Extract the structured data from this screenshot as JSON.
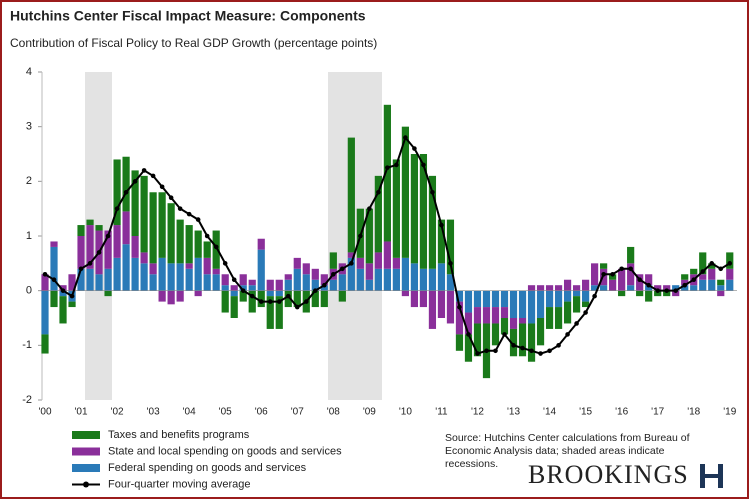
{
  "chart_data": {
    "type": "bar",
    "title": "Hutchins Center Fiscal Impact Measure: Components",
    "subtitle": "Contribution of Fiscal Policy to Real GDP Growth (percentage points)",
    "source": "Source: Hutchins Center calculations from Bureau of Economic Analysis data; shaded areas indicate recessions.",
    "brand": "BROOKINGS",
    "categories": [
      "'00",
      null,
      null,
      null,
      "'01",
      null,
      null,
      null,
      "'02",
      null,
      null,
      null,
      "'03",
      null,
      null,
      null,
      "'04",
      null,
      null,
      null,
      "'05",
      null,
      null,
      null,
      "'06",
      null,
      null,
      null,
      "'07",
      null,
      null,
      null,
      "'08",
      null,
      null,
      null,
      "'09",
      null,
      null,
      null,
      "'10",
      null,
      null,
      null,
      "'11",
      null,
      null,
      null,
      "'12",
      null,
      null,
      null,
      "'13",
      null,
      null,
      null,
      "'14",
      null,
      null,
      null,
      "'15",
      null,
      null,
      null,
      "'16",
      null,
      null,
      null,
      "'17",
      null,
      null,
      null,
      "'18",
      null,
      null,
      null,
      "'19"
    ],
    "ylim": [
      -2,
      4
    ],
    "yticks": [
      -2,
      -1,
      0,
      1,
      2,
      3,
      4
    ],
    "series": [
      {
        "name": "Taxes and benefits programs",
        "color": "#1a7a1a",
        "values": [
          -0.35,
          -0.3,
          -0.5,
          -0.1,
          0.2,
          0.1,
          0.1,
          -0.1,
          1.2,
          1.0,
          1.2,
          1.4,
          1.3,
          1.2,
          1.1,
          0.8,
          0.7,
          0.5,
          0.3,
          0.7,
          -0.4,
          -0.4,
          -0.2,
          -0.4,
          -0.3,
          -0.6,
          -0.6,
          -0.3,
          -0.3,
          -0.4,
          -0.3,
          -0.3,
          0.3,
          -0.2,
          2.1,
          0.9,
          1.0,
          1.4,
          2.5,
          1.8,
          2.4,
          2.0,
          2.1,
          1.7,
          0.8,
          1.0,
          -0.3,
          -0.5,
          -0.6,
          -1.0,
          -0.4,
          -0.3,
          -0.5,
          -0.6,
          -0.7,
          -0.5,
          -0.4,
          -0.4,
          -0.4,
          -0.3,
          -0.1,
          0.0,
          0.1,
          0.1,
          -0.1,
          0.3,
          -0.1,
          -0.2,
          -0.1,
          -0.1,
          0.0,
          0.1,
          0.1,
          0.4,
          0.1,
          0.1,
          0.3
        ]
      },
      {
        "name": "State and local spending on goods and services",
        "color": "#8a2f9a",
        "values": [
          0.3,
          0.1,
          0.1,
          0.3,
          0.6,
          0.8,
          0.8,
          0.7,
          0.6,
          0.6,
          0.4,
          0.2,
          0.2,
          -0.2,
          -0.25,
          -0.2,
          0.1,
          -0.1,
          0.3,
          0.1,
          0.2,
          0.1,
          0.2,
          0.1,
          0.2,
          0.2,
          0.2,
          0.1,
          0.2,
          0.2,
          0.2,
          0.2,
          0.2,
          0.2,
          0.1,
          0.2,
          0.3,
          0.3,
          0.5,
          0.2,
          -0.1,
          -0.3,
          -0.3,
          -0.7,
          -0.5,
          -0.6,
          -0.6,
          -0.4,
          -0.3,
          -0.3,
          -0.3,
          -0.2,
          -0.2,
          -0.1,
          0.1,
          0.1,
          0.1,
          0.1,
          0.2,
          0.1,
          0.2,
          0.4,
          0.3,
          0.2,
          0.4,
          0.4,
          0.3,
          0.2,
          0.1,
          0.1,
          -0.1,
          0.1,
          0.2,
          0.1,
          0.2,
          -0.1,
          0.2
        ]
      },
      {
        "name": "Federal spending on goods and services",
        "color": "#2a7ab8",
        "values": [
          -0.8,
          0.8,
          -0.1,
          -0.2,
          0.4,
          0.4,
          0.3,
          0.4,
          0.6,
          0.85,
          0.6,
          0.5,
          0.3,
          0.6,
          0.5,
          0.5,
          0.4,
          0.6,
          0.3,
          0.3,
          0.1,
          -0.1,
          0.1,
          0.1,
          0.75,
          -0.1,
          -0.1,
          0.2,
          0.4,
          0.3,
          0.2,
          0.1,
          0.2,
          0.3,
          0.6,
          0.4,
          0.2,
          0.4,
          0.4,
          0.4,
          0.6,
          0.5,
          0.4,
          0.4,
          0.5,
          0.3,
          -0.2,
          -0.4,
          -0.3,
          -0.3,
          -0.3,
          -0.3,
          -0.5,
          -0.5,
          -0.6,
          -0.5,
          -0.3,
          -0.3,
          -0.2,
          -0.1,
          -0.2,
          0.1,
          0.1,
          0.0,
          0.0,
          0.1,
          0.0,
          0.1,
          0.0,
          0.0,
          0.1,
          0.1,
          0.1,
          0.2,
          0.2,
          0.1,
          0.2
        ]
      },
      {
        "name": "Four-quarter moving average",
        "color": "#000000",
        "type": "line",
        "values": [
          0.3,
          0.2,
          0.0,
          -0.1,
          0.4,
          0.5,
          0.7,
          1.0,
          1.5,
          1.8,
          2.0,
          2.2,
          2.1,
          1.9,
          1.7,
          1.5,
          1.4,
          1.3,
          1.0,
          0.8,
          0.5,
          0.2,
          0.0,
          -0.1,
          -0.2,
          -0.2,
          -0.2,
          -0.1,
          -0.3,
          -0.2,
          0.0,
          0.1,
          0.3,
          0.4,
          0.5,
          1.0,
          1.5,
          1.8,
          2.25,
          2.3,
          2.8,
          2.6,
          2.3,
          1.8,
          1.2,
          0.5,
          -0.3,
          -0.8,
          -1.15,
          -1.1,
          -1.1,
          -0.8,
          -1.0,
          -1.05,
          -1.1,
          -1.15,
          -1.1,
          -1.0,
          -0.8,
          -0.6,
          -0.4,
          -0.1,
          0.3,
          0.3,
          0.4,
          0.4,
          0.2,
          0.1,
          0.0,
          0.0,
          0.0,
          0.1,
          0.2,
          0.35,
          0.5,
          0.4,
          0.5
        ]
      }
    ]
  }
}
